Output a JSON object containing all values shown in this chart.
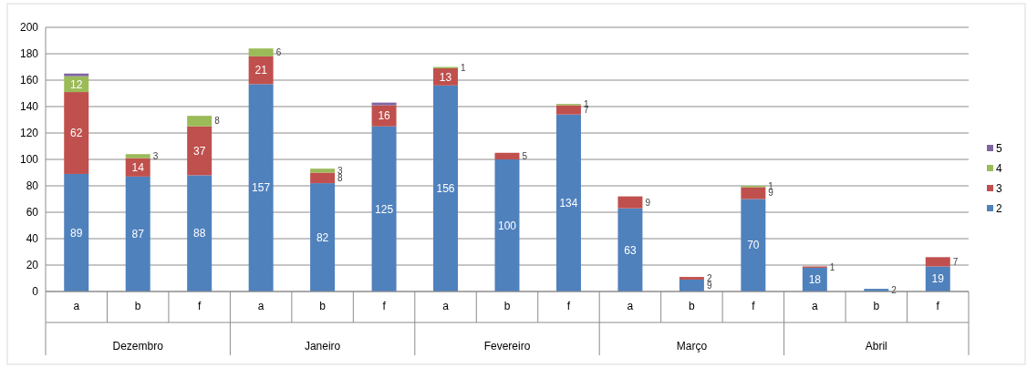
{
  "chart_data": {
    "type": "bar",
    "stacked": true,
    "categories": [
      "a",
      "b",
      "f",
      "a",
      "b",
      "f",
      "a",
      "b",
      "f",
      "a",
      "b",
      "f",
      "a",
      "b",
      "f"
    ],
    "annotations": [
      "Dezembro",
      "Janeiro",
      "Fevereiro",
      "Março",
      "Abril"
    ],
    "series": [
      {
        "name": "2",
        "color": "#4f81bd",
        "values": [
          89,
          87,
          88,
          157,
          82,
          125,
          156,
          100,
          134,
          63,
          9,
          70,
          18,
          2,
          19
        ],
        "value_labels": [
          "89",
          "87",
          "88",
          "157",
          "82",
          "125",
          "156",
          "100",
          "134",
          "63",
          "9",
          "70",
          "18",
          "2",
          "19"
        ]
      },
      {
        "name": "3",
        "color": "#c0504d",
        "values": [
          62,
          14,
          37,
          21,
          8,
          16,
          13,
          5,
          7,
          9,
          2,
          9,
          1,
          null,
          7
        ],
        "value_labels": [
          "62",
          "14",
          "37",
          "21",
          "8",
          "16",
          "13",
          "5",
          "7",
          "9",
          "2",
          "9",
          "1",
          null,
          "7"
        ]
      },
      {
        "name": "4",
        "color": "#9bbb59",
        "values": [
          12,
          3,
          8,
          6,
          3,
          null,
          1,
          null,
          1,
          null,
          null,
          1,
          null,
          null,
          null
        ],
        "value_labels": [
          "12",
          "3",
          "8",
          "6",
          "3",
          null,
          "1",
          null,
          "1",
          null,
          null,
          "1",
          null,
          null,
          null
        ]
      },
      {
        "name": "5",
        "color": "#8064a2",
        "values": [
          2,
          null,
          null,
          null,
          null,
          2,
          null,
          null,
          null,
          null,
          null,
          null,
          null,
          null,
          null
        ]
      }
    ],
    "ylim": [
      0,
      200
    ],
    "yticks": [
      0,
      20,
      40,
      60,
      80,
      100,
      120,
      140,
      160,
      180,
      200
    ],
    "grid": "y",
    "legend": "right"
  }
}
